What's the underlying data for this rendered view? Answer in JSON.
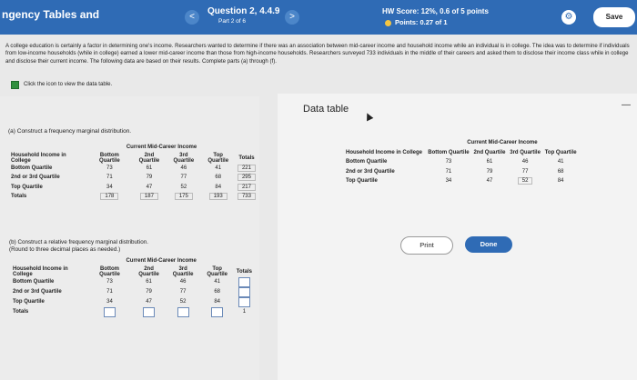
{
  "header": {
    "title": "ngency Tables and",
    "question": "Question 2, 4.4.9",
    "part": "Part 2 of 6",
    "hw_score": "HW Score: 12%, 0.6 of 5 points",
    "points": "Points: 0.27 of 1",
    "save": "Save",
    "prev_icon": "<",
    "next_icon": ">",
    "gear_icon": "⚙"
  },
  "intro": {
    "text": "A college education is certainly a factor in determining one's income. Researchers wanted to determine if there was an association between mid-career income and household income while an individual is in college. The idea was to determine if individuals from low-income households (while in college) earned a lower mid-career income than those from high-income households. Researchers surveyed 733 individuals in the middle of their careers and asked them to disclose their income class while in college and disclose their current income. The following data are based on their results. Complete parts (a) through (f).",
    "link": "Click the icon to view the data table."
  },
  "part_a": {
    "label": "(a) Construct a frequency marginal distribution.",
    "group_header": "Current Mid-Career Income",
    "col1_header": "Household Income in College",
    "cols": [
      "Bottom Quartile",
      "2nd Quartile",
      "3rd Quartile",
      "Top Quartile",
      "Totals"
    ],
    "rows": [
      {
        "label": "Bottom Quartile",
        "values": [
          "73",
          "61",
          "46",
          "41",
          "221"
        ]
      },
      {
        "label": "2nd or 3rd Quartile",
        "values": [
          "71",
          "79",
          "77",
          "68",
          "295"
        ]
      },
      {
        "label": "Top Quartile",
        "values": [
          "34",
          "47",
          "52",
          "84",
          "217"
        ]
      },
      {
        "label": "Totals",
        "values": [
          "178",
          "187",
          "175",
          "193",
          "733"
        ]
      }
    ]
  },
  "part_b": {
    "label1": "(b) Construct a relative frequency marginal distribution.",
    "label2": "(Round to three decimal places as needed.)",
    "group_header": "Current Mid-Career Income",
    "col1_header": "Household Income in College",
    "cols": [
      "Bottom Quartile",
      "2nd Quartile",
      "3rd Quartile",
      "Top Quartile",
      "Totals"
    ],
    "rows": [
      {
        "label": "Bottom Quartile",
        "values": [
          "73",
          "61",
          "46",
          "41"
        ]
      },
      {
        "label": "2nd or 3rd Quartile",
        "values": [
          "71",
          "79",
          "77",
          "68"
        ]
      },
      {
        "label": "Top Quartile",
        "values": [
          "34",
          "47",
          "52",
          "84"
        ]
      },
      {
        "label": "Totals",
        "values": [
          "",
          "",
          "",
          ""
        ]
      }
    ],
    "grand_total": "1"
  },
  "data_table": {
    "title": "Data table",
    "group_header": "Current Mid-Career Income",
    "col1_header": "Household Income in College",
    "cols": [
      "Bottom Quartile",
      "2nd Quartile",
      "3rd Quartile",
      "Top Quartile"
    ],
    "rows": [
      {
        "label": "Bottom Quartile",
        "values": [
          "73",
          "61",
          "46",
          "41"
        ]
      },
      {
        "label": "2nd or 3rd Quartile",
        "values": [
          "71",
          "79",
          "77",
          "68"
        ]
      },
      {
        "label": "Top Quartile",
        "values": [
          "34",
          "47",
          "52",
          "84"
        ]
      }
    ],
    "print": "Print",
    "done": "Done",
    "minimize": "—"
  }
}
